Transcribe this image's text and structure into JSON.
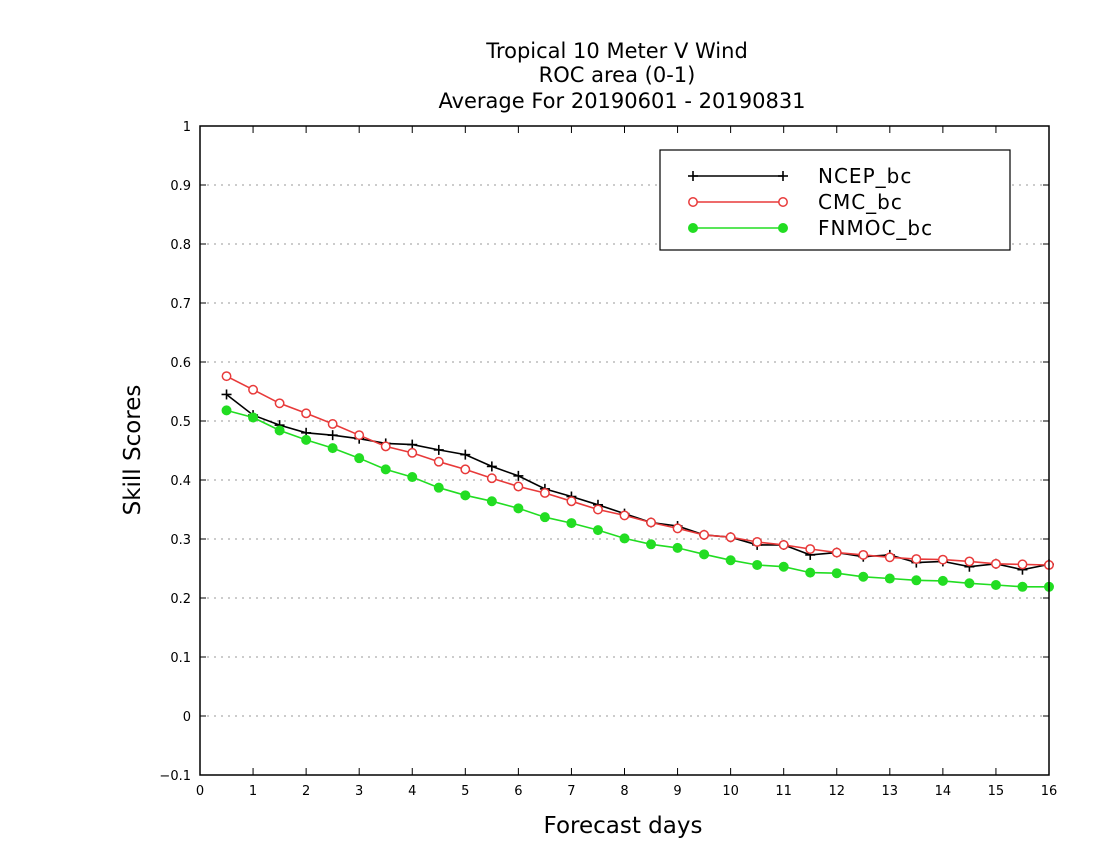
{
  "chart_data": {
    "type": "line",
    "title": [
      "Tropical 10 Meter V Wind",
      "ROC area (0-1)",
      "Average For 20190601 - 20190831"
    ],
    "xlabel": "Forecast days",
    "ylabel": "Skill Scores",
    "xlim": [
      0,
      16
    ],
    "ylim": [
      -0.1,
      1
    ],
    "xticks": [
      "0",
      "1",
      "2",
      "3",
      "4",
      "5",
      "6",
      "7",
      "8",
      "9",
      "10",
      "11",
      "12",
      "13",
      "14",
      "15",
      "16"
    ],
    "yticks": [
      "−0.1",
      "0",
      "0.1",
      "0.2",
      "0.3",
      "0.4",
      "0.5",
      "0.6",
      "0.7",
      "0.8",
      "0.9",
      "1"
    ],
    "grid": true,
    "legend_position": "top-right",
    "x": [
      0.5,
      1,
      1.5,
      2,
      2.5,
      3,
      3.5,
      4,
      4.5,
      5,
      5.5,
      6,
      6.5,
      7,
      7.5,
      8,
      8.5,
      9,
      9.5,
      10,
      10.5,
      11,
      11.5,
      12,
      12.5,
      13,
      13.5,
      14,
      14.5,
      15,
      15.5,
      16
    ],
    "series": [
      {
        "name": "NCEP_bc",
        "color": "#000000",
        "marker": "plus",
        "values": [
          0.545,
          0.51,
          0.493,
          0.48,
          0.476,
          0.47,
          0.462,
          0.46,
          0.451,
          0.443,
          0.423,
          0.407,
          0.385,
          0.372,
          0.358,
          0.343,
          0.328,
          0.322,
          0.307,
          0.303,
          0.29,
          0.29,
          0.273,
          0.277,
          0.27,
          0.273,
          0.26,
          0.262,
          0.253,
          0.258,
          0.248,
          0.257
        ]
      },
      {
        "name": "CMC_bc",
        "color": "#e83a3a",
        "marker": "open-circle",
        "values": [
          0.576,
          0.553,
          0.53,
          0.513,
          0.495,
          0.476,
          0.457,
          0.446,
          0.431,
          0.418,
          0.403,
          0.389,
          0.378,
          0.364,
          0.35,
          0.34,
          0.328,
          0.318,
          0.307,
          0.303,
          0.295,
          0.29,
          0.283,
          0.277,
          0.273,
          0.269,
          0.266,
          0.265,
          0.262,
          0.258,
          0.257,
          0.256
        ]
      },
      {
        "name": "FNMOC_bc",
        "color": "#22dd22",
        "marker": "filled-circle",
        "values": [
          0.518,
          0.506,
          0.484,
          0.468,
          0.454,
          0.437,
          0.418,
          0.405,
          0.387,
          0.374,
          0.364,
          0.352,
          0.337,
          0.327,
          0.315,
          0.301,
          0.291,
          0.285,
          0.274,
          0.264,
          0.256,
          0.253,
          0.243,
          0.242,
          0.236,
          0.233,
          0.23,
          0.229,
          0.225,
          0.222,
          0.219,
          0.219
        ]
      }
    ]
  }
}
